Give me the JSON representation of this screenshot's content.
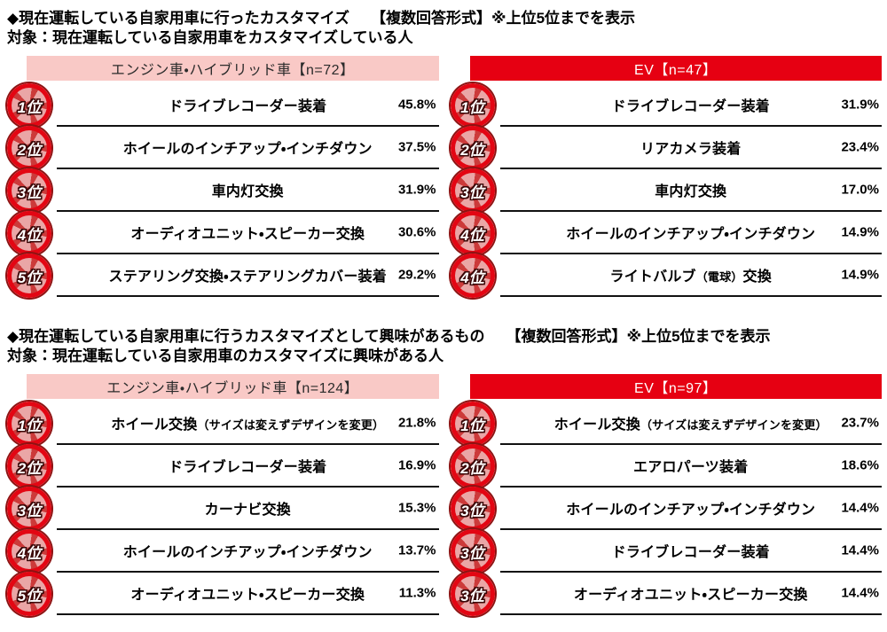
{
  "colors": {
    "header_red": "#e60012",
    "header_pink": "#f9c9c6",
    "badge_red": "#e30613",
    "badge_dark_ring": "#8e1212",
    "line_black": "#111111"
  },
  "sections": [
    {
      "title": "◆現在運転している自家用車に行ったカスタマイズ",
      "note": "【複数回答形式】※上位5位までを表示",
      "target": "対象：現在運転している自家用車をカスタマイズしている人",
      "tables": [
        {
          "header": "エンジン車・ハイブリッド車【n=72】",
          "style": "pink",
          "rows": [
            {
              "rank": "1位",
              "pre": "ドライブレコーダー装着",
              "small": "",
              "post": "",
              "pct": "45.8%"
            },
            {
              "rank": "2位",
              "pre": "ホイールのインチアップ・インチダウン",
              "small": "",
              "post": "",
              "pct": "37.5%"
            },
            {
              "rank": "3位",
              "pre": "車内灯交換",
              "small": "",
              "post": "",
              "pct": "31.9%"
            },
            {
              "rank": "4位",
              "pre": "オーディオユニット・スピーカー交換",
              "small": "",
              "post": "",
              "pct": "30.6%"
            },
            {
              "rank": "5位",
              "pre": "ステアリング交換・ステアリングカバー装着",
              "small": "",
              "post": "",
              "pct": "29.2%"
            }
          ]
        },
        {
          "header": "EV【n=47】",
          "style": "red",
          "rows": [
            {
              "rank": "1位",
              "pre": "ドライブレコーダー装着",
              "small": "",
              "post": "",
              "pct": "31.9%"
            },
            {
              "rank": "2位",
              "pre": "リアカメラ装着",
              "small": "",
              "post": "",
              "pct": "23.4%"
            },
            {
              "rank": "3位",
              "pre": "車内灯交換",
              "small": "",
              "post": "",
              "pct": "17.0%"
            },
            {
              "rank": "4位",
              "pre": "ホイールのインチアップ・インチダウン",
              "small": "",
              "post": "",
              "pct": "14.9%"
            },
            {
              "rank": "4位",
              "pre": "ライトバルブ",
              "small": "（電球）",
              "post": "交換",
              "pct": "14.9%"
            }
          ]
        }
      ]
    },
    {
      "title": "◆現在運転している自家用車に行うカスタマイズとして興味があるもの",
      "note": "【複数回答形式】※上位5位までを表示",
      "target": "対象：現在運転している自家用車のカスタマイズに興味がある人",
      "tables": [
        {
          "header": "エンジン車・ハイブリッド車【n=124】",
          "style": "pink",
          "rows": [
            {
              "rank": "1位",
              "pre": "ホイール交換",
              "small": "（サイズは変えずデザインを変更）",
              "post": "",
              "pct": "21.8%"
            },
            {
              "rank": "2位",
              "pre": "ドライブレコーダー装着",
              "small": "",
              "post": "",
              "pct": "16.9%"
            },
            {
              "rank": "3位",
              "pre": "カーナビ交換",
              "small": "",
              "post": "",
              "pct": "15.3%"
            },
            {
              "rank": "4位",
              "pre": "ホイールのインチアップ・インチダウン",
              "small": "",
              "post": "",
              "pct": "13.7%"
            },
            {
              "rank": "5位",
              "pre": "オーディオユニット・スピーカー交換",
              "small": "",
              "post": "",
              "pct": "11.3%"
            }
          ]
        },
        {
          "header": "EV【n=97】",
          "style": "red",
          "rows": [
            {
              "rank": "1位",
              "pre": "ホイール交換",
              "small": "（サイズは変えずデザインを変更）",
              "post": "",
              "pct": "23.7%"
            },
            {
              "rank": "2位",
              "pre": "エアロパーツ装着",
              "small": "",
              "post": "",
              "pct": "18.6%"
            },
            {
              "rank": "3位",
              "pre": "ホイールのインチアップ・インチダウン",
              "small": "",
              "post": "",
              "pct": "14.4%"
            },
            {
              "rank": "3位",
              "pre": "ドライブレコーダー装着",
              "small": "",
              "post": "",
              "pct": "14.4%"
            },
            {
              "rank": "3位",
              "pre": "オーディオユニット・スピーカー交換",
              "small": "",
              "post": "",
              "pct": "14.4%"
            }
          ]
        }
      ]
    }
  ],
  "chart_data": [
    {
      "type": "table",
      "title": "現在運転している自家用車に行ったカスタマイズ【複数回答形式】※上位5位までを表示",
      "group": "エンジン車・ハイブリッド車",
      "n": 72,
      "ranks": [
        "1位",
        "2位",
        "3位",
        "4位",
        "5位"
      ],
      "categories": [
        "ドライブレコーダー装着",
        "ホイールのインチアップ・インチダウン",
        "車内灯交換",
        "オーディオユニット・スピーカー交換",
        "ステアリング交換・ステアリングカバー装着"
      ],
      "values_pct": [
        45.8,
        37.5,
        31.9,
        30.6,
        29.2
      ]
    },
    {
      "type": "table",
      "title": "現在運転している自家用車に行ったカスタマイズ【複数回答形式】※上位5位までを表示",
      "group": "EV",
      "n": 47,
      "ranks": [
        "1位",
        "2位",
        "3位",
        "4位",
        "4位"
      ],
      "categories": [
        "ドライブレコーダー装着",
        "リアカメラ装着",
        "車内灯交換",
        "ホイールのインチアップ・インチダウン",
        "ライトバルブ（電球）交換"
      ],
      "values_pct": [
        31.9,
        23.4,
        17.0,
        14.9,
        14.9
      ]
    },
    {
      "type": "table",
      "title": "現在運転している自家用車に行うカスタマイズとして興味があるもの【複数回答形式】※上位5位までを表示",
      "group": "エンジン車・ハイブリッド車",
      "n": 124,
      "ranks": [
        "1位",
        "2位",
        "3位",
        "4位",
        "5位"
      ],
      "categories": [
        "ホイール交換（サイズは変えずデザインを変更）",
        "ドライブレコーダー装着",
        "カーナビ交換",
        "ホイールのインチアップ・インチダウン",
        "オーディオユニット・スピーカー交換"
      ],
      "values_pct": [
        21.8,
        16.9,
        15.3,
        13.7,
        11.3
      ]
    },
    {
      "type": "table",
      "title": "現在運転している自家用車に行うカスタマイズとして興味があるもの【複数回答形式】※上位5位までを表示",
      "group": "EV",
      "n": 97,
      "ranks": [
        "1位",
        "2位",
        "3位",
        "3位",
        "3位"
      ],
      "categories": [
        "ホイール交換（サイズは変えずデザインを変更）",
        "エアロパーツ装着",
        "ホイールのインチアップ・インチダウン",
        "ドライブレコーダー装着",
        "オーディオユニット・スピーカー交換"
      ],
      "values_pct": [
        23.7,
        18.6,
        14.4,
        14.4,
        14.4
      ]
    }
  ]
}
